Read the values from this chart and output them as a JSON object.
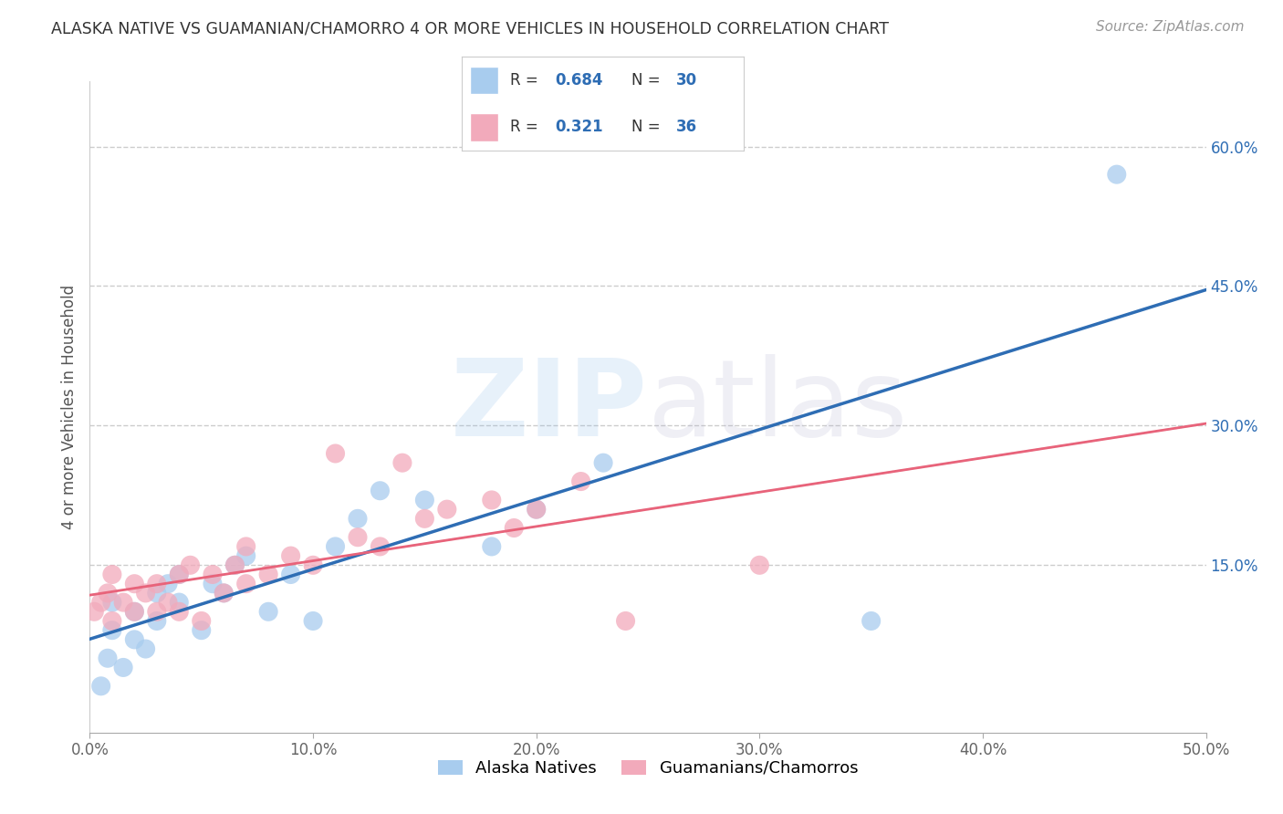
{
  "title": "ALASKA NATIVE VS GUAMANIAN/CHAMORRO 4 OR MORE VEHICLES IN HOUSEHOLD CORRELATION CHART",
  "source": "Source: ZipAtlas.com",
  "ylabel": "4 or more Vehicles in Household",
  "xmin": 0.0,
  "xmax": 0.5,
  "ymin": -0.03,
  "ymax": 0.67,
  "xticks": [
    0.0,
    0.1,
    0.2,
    0.3,
    0.4,
    0.5
  ],
  "xtick_labels": [
    "0.0%",
    "10.0%",
    "20.0%",
    "30.0%",
    "40.0%",
    "50.0%"
  ],
  "yticks": [
    0.15,
    0.3,
    0.45,
    0.6
  ],
  "ytick_labels": [
    "15.0%",
    "30.0%",
    "45.0%",
    "60.0%"
  ],
  "blue_R": 0.684,
  "blue_N": 30,
  "pink_R": 0.321,
  "pink_N": 36,
  "blue_color": "#A8CCEE",
  "pink_color": "#F2AABB",
  "blue_line_color": "#2E6DB4",
  "pink_line_color": "#E8637A",
  "blue_scatter_x": [
    0.005,
    0.008,
    0.01,
    0.01,
    0.015,
    0.02,
    0.02,
    0.025,
    0.03,
    0.03,
    0.035,
    0.04,
    0.04,
    0.05,
    0.055,
    0.06,
    0.065,
    0.07,
    0.08,
    0.09,
    0.1,
    0.11,
    0.12,
    0.13,
    0.15,
    0.18,
    0.2,
    0.23,
    0.35,
    0.46
  ],
  "blue_scatter_y": [
    0.02,
    0.05,
    0.08,
    0.11,
    0.04,
    0.07,
    0.1,
    0.06,
    0.09,
    0.12,
    0.13,
    0.11,
    0.14,
    0.08,
    0.13,
    0.12,
    0.15,
    0.16,
    0.1,
    0.14,
    0.09,
    0.17,
    0.2,
    0.23,
    0.22,
    0.17,
    0.21,
    0.26,
    0.09,
    0.57
  ],
  "pink_scatter_x": [
    0.002,
    0.005,
    0.008,
    0.01,
    0.01,
    0.015,
    0.02,
    0.02,
    0.025,
    0.03,
    0.03,
    0.035,
    0.04,
    0.04,
    0.045,
    0.05,
    0.055,
    0.06,
    0.065,
    0.07,
    0.07,
    0.08,
    0.09,
    0.1,
    0.11,
    0.12,
    0.13,
    0.14,
    0.15,
    0.16,
    0.18,
    0.19,
    0.2,
    0.22,
    0.24,
    0.3
  ],
  "pink_scatter_y": [
    0.1,
    0.11,
    0.12,
    0.09,
    0.14,
    0.11,
    0.1,
    0.13,
    0.12,
    0.1,
    0.13,
    0.11,
    0.14,
    0.1,
    0.15,
    0.09,
    0.14,
    0.12,
    0.15,
    0.13,
    0.17,
    0.14,
    0.16,
    0.15,
    0.27,
    0.18,
    0.17,
    0.26,
    0.2,
    0.21,
    0.22,
    0.19,
    0.21,
    0.24,
    0.09,
    0.15
  ],
  "background_color": "#FFFFFF",
  "grid_color": "#CCCCCC",
  "legend_label_blue": "Alaska Natives",
  "legend_label_pink": "Guamanians/Chamorros"
}
